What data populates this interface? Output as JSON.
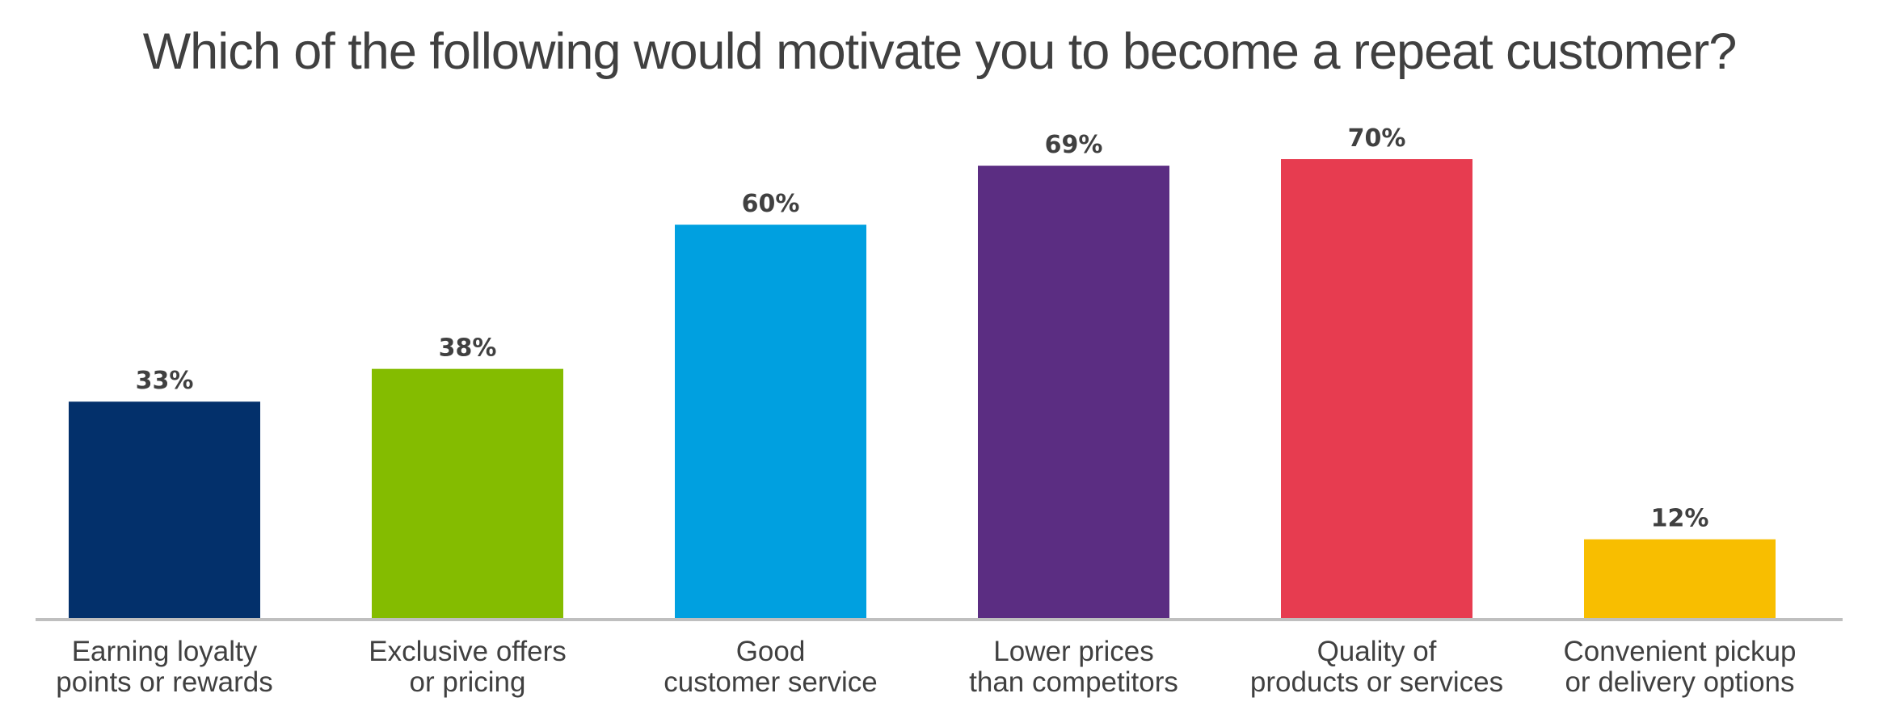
{
  "chart_data": {
    "type": "bar",
    "title": "Which of the following would motivate you to become a repeat customer?",
    "categories": [
      [
        "Earning loyalty",
        "points or rewards"
      ],
      [
        "Exclusive offers",
        "or pricing"
      ],
      [
        "Good",
        "customer service"
      ],
      [
        "Lower prices",
        "than competitors"
      ],
      [
        "Quality of",
        "products or services"
      ],
      [
        "Convenient pickup",
        "or delivery options"
      ]
    ],
    "values": [
      33,
      38,
      60,
      69,
      70,
      12
    ],
    "value_labels": [
      "33%",
      "38%",
      "60%",
      "69%",
      "70%",
      "12%"
    ],
    "colors": [
      "#03306b",
      "#84bc00",
      "#00a0e0",
      "#5b2d82",
      "#e73c50",
      "#f8be00"
    ],
    "axis_color": "#bfbfbf",
    "xlabel": "",
    "ylabel": "",
    "ylim": [
      0,
      70
    ],
    "grid": false,
    "legend": "none"
  }
}
